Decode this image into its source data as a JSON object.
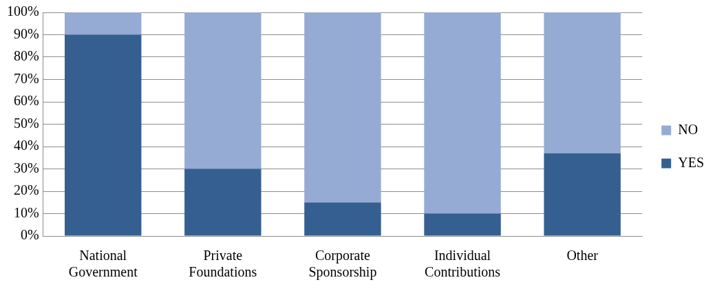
{
  "chart_data": {
    "type": "bar",
    "stacked": true,
    "categories": [
      "National Government",
      "Private Foundations",
      "Corporate Sponsorship",
      "Individual Contributions",
      "Other"
    ],
    "series": [
      {
        "name": "YES",
        "color": "#355f91",
        "values": [
          90,
          30,
          15,
          10,
          37
        ]
      },
      {
        "name": "NO",
        "color": "#95abd3",
        "values": [
          10,
          70,
          85,
          90,
          63
        ]
      }
    ],
    "ylim": [
      0,
      100
    ],
    "yticks": [
      {
        "value": 0,
        "label": "0%"
      },
      {
        "value": 10,
        "label": "10%"
      },
      {
        "value": 20,
        "label": "20%"
      },
      {
        "value": 30,
        "label": "30%"
      },
      {
        "value": 40,
        "label": "40%"
      },
      {
        "value": 50,
        "label": "50%"
      },
      {
        "value": 60,
        "label": "60%"
      },
      {
        "value": 70,
        "label": "70%"
      },
      {
        "value": 80,
        "label": "80%"
      },
      {
        "value": 90,
        "label": "90%"
      },
      {
        "value": 100,
        "label": "100%"
      }
    ],
    "grid": "y",
    "legend": "right"
  }
}
